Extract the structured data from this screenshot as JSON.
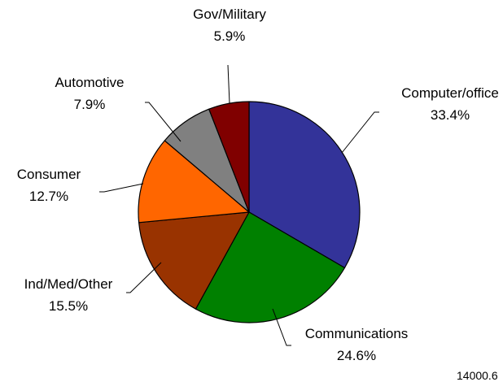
{
  "chart_data": {
    "type": "pie",
    "start_angle_deg": 0,
    "direction": "clockwise",
    "slices": [
      {
        "label": "Computer/office",
        "value": 33.4,
        "value_label": "33.4%",
        "color": "#333399"
      },
      {
        "label": "Communications",
        "value": 24.6,
        "value_label": "24.6%",
        "color": "#008000"
      },
      {
        "label": "Ind/Med/Other",
        "value": 15.5,
        "value_label": "15.5%",
        "color": "#993300"
      },
      {
        "label": "Consumer",
        "value": 12.7,
        "value_label": "12.7%",
        "color": "#ff6600"
      },
      {
        "label": "Automotive",
        "value": 7.9,
        "value_label": "7.9%",
        "color": "#808080"
      },
      {
        "label": "Gov/Military",
        "value": 5.9,
        "value_label": "5.9%",
        "color": "#800000"
      }
    ],
    "annotation": "14000.6"
  }
}
